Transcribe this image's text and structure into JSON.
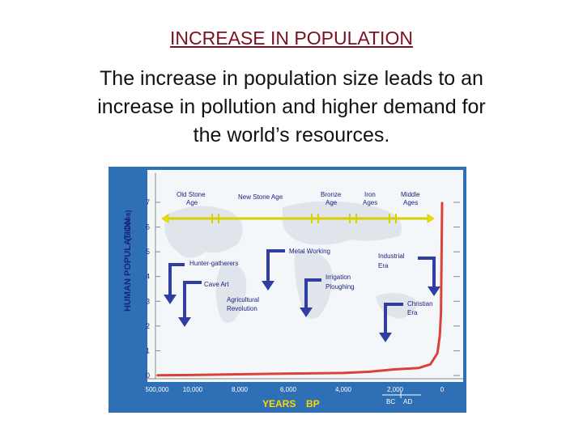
{
  "slide": {
    "title": "INCREASE IN POPULATION",
    "body_lines": [
      "The increase in population size leads to an",
      "increase in pollution and higher demand for",
      "the world’s resources."
    ]
  },
  "chart_data": {
    "type": "line",
    "ylabel": "HUMAN POPULATION",
    "ylabel_unit": "(billions)",
    "xlabel": "YEARS",
    "xlabel_suffix": "BP",
    "ylim": [
      0,
      7
    ],
    "y_ticks": [
      "0",
      "1",
      "2",
      "3",
      "4",
      "5",
      "6",
      "7"
    ],
    "x_ticks": [
      "500,000",
      "10,000",
      "8,000",
      "6,000",
      "4,000",
      "2,000",
      "0"
    ],
    "era_marks": [
      "BC",
      "AD"
    ],
    "ages": [
      "Old Stone Age",
      "New Stone Age",
      "Bronze Age",
      "Iron Ages",
      "Middle Ages"
    ],
    "annotations": [
      "Hunter-gatherers",
      "Cave Art",
      "Agricultural Revolution",
      "Metal Working",
      "Irrigation Ploughing",
      "Industrial Era",
      "Christian Era"
    ],
    "series": [
      {
        "x": [
          "500,000",
          "10,000",
          "8,000",
          "6,000",
          "4,000",
          "3,000",
          "2,000",
          "1,000",
          "500",
          "200",
          "100",
          "50",
          "0"
        ],
        "values": [
          0.01,
          0.02,
          0.05,
          0.08,
          0.1,
          0.15,
          0.25,
          0.3,
          0.45,
          0.9,
          1.6,
          2.5,
          7
        ]
      }
    ],
    "colors": {
      "frame": "#2f6fb5",
      "line": "#d9423a",
      "arrows": "#2f3ea0",
      "ages_bar": "#e6e000",
      "axis_text": "#1a237e",
      "years_label": "#ffd700"
    }
  }
}
